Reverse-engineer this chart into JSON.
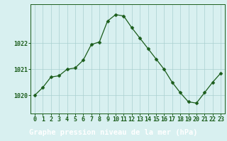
{
  "hours": [
    0,
    1,
    2,
    3,
    4,
    5,
    6,
    7,
    8,
    9,
    10,
    11,
    12,
    13,
    14,
    15,
    16,
    17,
    18,
    19,
    20,
    21,
    22,
    23
  ],
  "pressure": [
    1020.0,
    1020.3,
    1020.7,
    1020.75,
    1021.0,
    1021.05,
    1021.35,
    1021.95,
    1022.05,
    1022.85,
    1023.1,
    1023.05,
    1022.6,
    1022.2,
    1021.8,
    1021.4,
    1021.0,
    1020.5,
    1020.1,
    1019.75,
    1019.7,
    1020.1,
    1020.5,
    1020.85
  ],
  "line_color": "#1a5c1a",
  "marker": "D",
  "marker_size": 2.5,
  "bg_color": "#d8f0f0",
  "label_bg_color": "#4a8c4a",
  "grid_color": "#aacfcf",
  "title": "Graphe pression niveau de la mer (hPa)",
  "ylabel_ticks": [
    1020,
    1021,
    1022
  ],
  "ylim": [
    1019.3,
    1023.5
  ],
  "xlim": [
    -0.5,
    23.5
  ],
  "title_fontsize": 7.5,
  "tick_fontsize": 6,
  "title_color": "#1a5c1a",
  "tick_color": "#1a5c1a"
}
